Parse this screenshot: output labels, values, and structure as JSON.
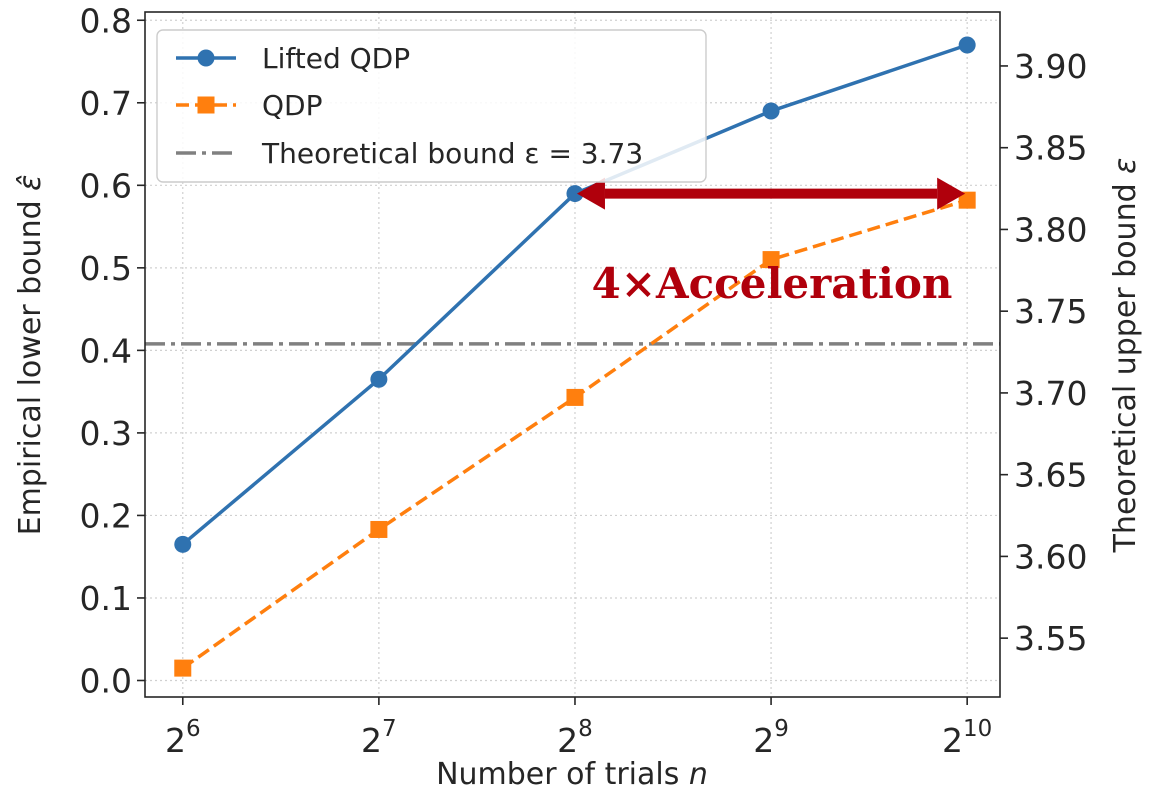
{
  "chart_data": {
    "type": "line",
    "x_labels": [
      {
        "base": "2",
        "exp": "6"
      },
      {
        "base": "2",
        "exp": "7"
      },
      {
        "base": "2",
        "exp": "8"
      },
      {
        "base": "2",
        "exp": "9"
      },
      {
        "base": "2",
        "exp": "10"
      }
    ],
    "x": [
      64,
      128,
      256,
      512,
      1024
    ],
    "x_scale": "log2",
    "xlim": [
      56,
      1150
    ],
    "xlabel": "Number of trials",
    "xlabel_var": "n",
    "ylabel_left": "Empirical lower bound",
    "ylabel_left_symbol": "ε̂",
    "ylabel_right": "Theoretical upper bound",
    "ylabel_right_symbol": "ε",
    "ylim_left": [
      -0.02,
      0.81
    ],
    "ylim_right": [
      3.514,
      3.933
    ],
    "yticks_left": [
      "0.0",
      "0.1",
      "0.2",
      "0.3",
      "0.4",
      "0.5",
      "0.6",
      "0.7",
      "0.8"
    ],
    "yticks_right": [
      "3.55",
      "3.60",
      "3.65",
      "3.70",
      "3.75",
      "3.80",
      "3.85",
      "3.90"
    ],
    "grid": true,
    "legend_position": "top-left",
    "series": [
      {
        "name": "Lifted QDP",
        "marker": "circle",
        "line": "solid",
        "color": "#2f72b0",
        "values": [
          0.165,
          0.365,
          0.59,
          0.69,
          0.77
        ]
      },
      {
        "name": "QDP",
        "marker": "square",
        "line": "dashed",
        "color": "#ff7f0e",
        "values": [
          0.015,
          0.183,
          0.343,
          0.51,
          0.582
        ]
      }
    ],
    "hlines": [
      {
        "label_text": "Theoretical bound",
        "label_math": "ε = 3.73",
        "value_right_axis": 3.73,
        "color": "#808080",
        "line": "dashdot"
      }
    ],
    "annotations": [
      {
        "text": "4×Acceleration",
        "color": "#b0000c",
        "arrow_y": 0.59,
        "arrow_x_from": 256,
        "arrow_x_to": 1024
      }
    ]
  }
}
